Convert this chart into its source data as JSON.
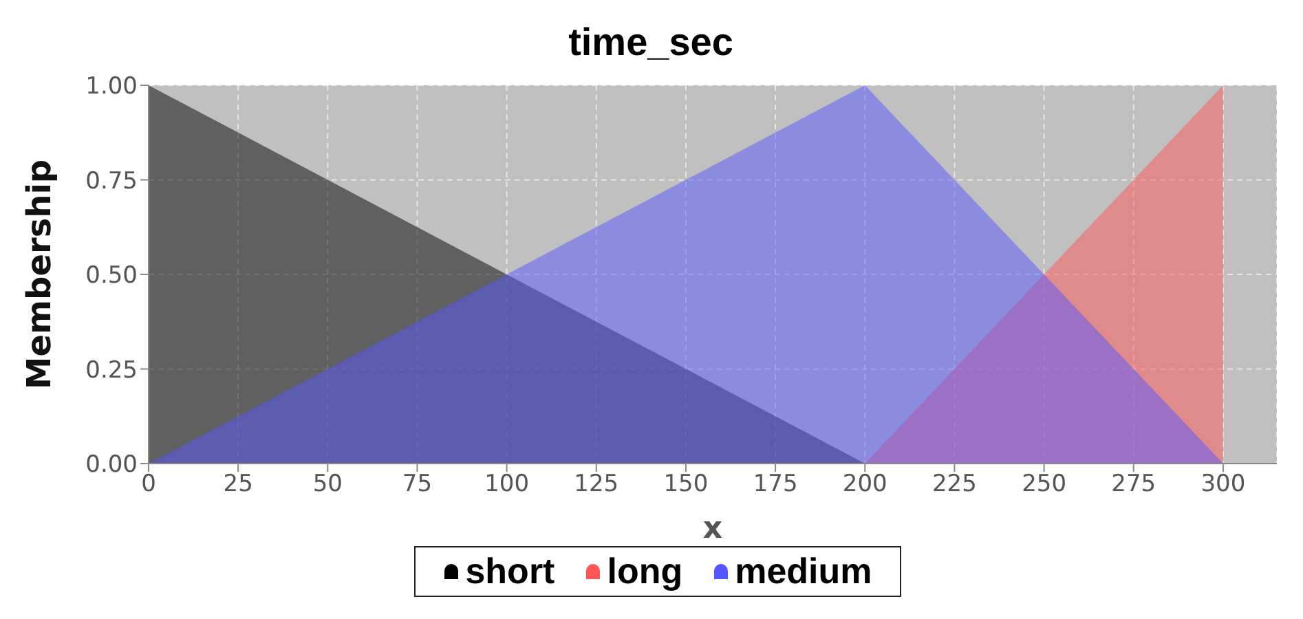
{
  "chart_data": {
    "type": "area",
    "title": "time_sec",
    "xlabel": "x",
    "ylabel": "Membership",
    "series": [
      {
        "name": "short",
        "color": "#000000",
        "x": [
          0,
          200
        ],
        "values": [
          1,
          0
        ]
      },
      {
        "name": "long",
        "color": "#ff5555",
        "x": [
          200,
          300
        ],
        "values": [
          0,
          1
        ]
      },
      {
        "name": "medium",
        "color": "#5555ff",
        "x": [
          0,
          200,
          300
        ],
        "values": [
          0,
          1,
          0
        ]
      }
    ],
    "xlim": [
      0,
      315
    ],
    "xticks": [
      0,
      25,
      50,
      75,
      100,
      125,
      150,
      175,
      200,
      225,
      250,
      275,
      300
    ],
    "ylim": [
      0,
      1
    ],
    "yticks": [
      {
        "value": 0,
        "label": "0.00"
      },
      {
        "value": 0.25,
        "label": "0.25"
      },
      {
        "value": 0.5,
        "label": "0.50"
      },
      {
        "value": 0.75,
        "label": "0.75"
      },
      {
        "value": 1,
        "label": "1.00"
      }
    ],
    "grid": true,
    "legend": "bottom"
  }
}
